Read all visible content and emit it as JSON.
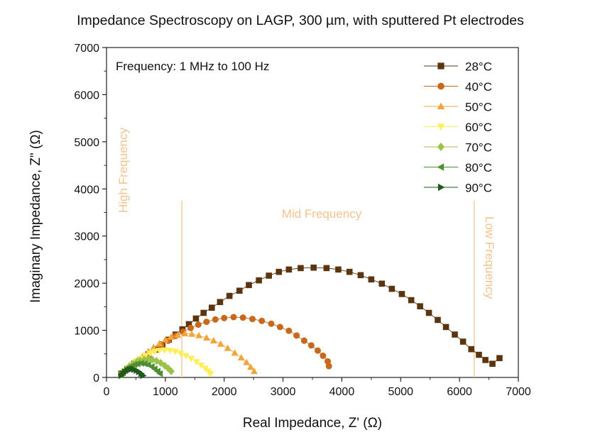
{
  "chart_data": {
    "type": "scatter",
    "title": "Impedance Spectroscopy on LAGP, 300 µm, with sputtered Pt electrodes",
    "xlabel": "Real Impedance, Z' (Ω)",
    "ylabel": "Imaginary Impedance, Z\" (Ω)",
    "xlim": [
      0,
      7000
    ],
    "ylim": [
      0,
      7000
    ],
    "xticks": [
      0,
      1000,
      2000,
      3000,
      4000,
      5000,
      6000,
      7000
    ],
    "yticks": [
      0,
      1000,
      2000,
      3000,
      4000,
      5000,
      6000,
      7000
    ],
    "grid": false,
    "legend_position": "top-right",
    "annotations": {
      "frequency_note": "Frequency: 1 MHz to 100 Hz",
      "high": "High Frequency",
      "mid": "Mid Frequency",
      "low": "Low Frequency"
    },
    "divider_lines_x": [
      1280,
      6250
    ],
    "series": [
      {
        "name": "28°C",
        "marker": "square",
        "color": "#5b3510",
        "x": [
          250,
          355,
          470,
          590,
          710,
          830,
          950,
          1060,
          1175,
          1290,
          1400,
          1520,
          1650,
          1790,
          1930,
          2090,
          2260,
          2420,
          2590,
          2760,
          2930,
          3100,
          3300,
          3520,
          3740,
          3940,
          4130,
          4320,
          4500,
          4680,
          4850,
          5020,
          5180,
          5330,
          5480,
          5630,
          5770,
          5920,
          6060,
          6200,
          6330,
          6440,
          6560,
          6680
        ],
        "y": [
          80,
          180,
          290,
          390,
          490,
          590,
          700,
          800,
          910,
          1020,
          1130,
          1250,
          1370,
          1480,
          1600,
          1730,
          1840,
          1960,
          2060,
          2160,
          2240,
          2290,
          2320,
          2330,
          2320,
          2290,
          2240,
          2170,
          2080,
          1990,
          1880,
          1770,
          1640,
          1510,
          1370,
          1220,
          1070,
          910,
          760,
          600,
          480,
          370,
          290,
          410
        ]
      },
      {
        "name": "40°C",
        "marker": "circle",
        "color": "#c8681c",
        "x": [
          250,
          330,
          420,
          510,
          610,
          710,
          820,
          930,
          1050,
          1170,
          1300,
          1430,
          1560,
          1700,
          1850,
          2000,
          2160,
          2320,
          2480,
          2640,
          2800,
          2950,
          3100,
          3230,
          3360,
          3480,
          3590,
          3680,
          3760,
          3780
        ],
        "y": [
          60,
          140,
          210,
          290,
          390,
          480,
          580,
          680,
          780,
          880,
          970,
          1050,
          1120,
          1180,
          1230,
          1260,
          1280,
          1270,
          1240,
          1200,
          1140,
          1070,
          990,
          890,
          780,
          680,
          570,
          460,
          340,
          240
        ]
      },
      {
        "name": "50°C",
        "marker": "triangle-up",
        "color": "#f2a43a",
        "x": [
          250,
          310,
          380,
          450,
          530,
          620,
          710,
          800,
          900,
          1000,
          1100,
          1210,
          1330,
          1450,
          1570,
          1700,
          1820,
          1940,
          2060,
          2180,
          2290,
          2380,
          2450,
          2510
        ],
        "y": [
          60,
          140,
          210,
          290,
          370,
          460,
          550,
          640,
          720,
          800,
          860,
          900,
          930,
          920,
          890,
          840,
          780,
          710,
          620,
          520,
          420,
          320,
          220,
          130
        ]
      },
      {
        "name": "60°C",
        "marker": "triangle-down",
        "color": "#ffee58",
        "x": [
          250,
          300,
          360,
          430,
          500,
          580,
          660,
          740,
          820,
          900,
          990,
          1080,
          1170,
          1260,
          1350,
          1440,
          1530,
          1610,
          1680,
          1730,
          1770
        ],
        "y": [
          60,
          130,
          200,
          270,
          340,
          400,
          460,
          510,
          550,
          570,
          580,
          570,
          550,
          510,
          460,
          400,
          330,
          260,
          190,
          130,
          80
        ]
      },
      {
        "name": "70°C",
        "marker": "diamond",
        "color": "#9cc24a",
        "x": [
          250,
          290,
          340,
          390,
          450,
          510,
          570,
          640,
          710,
          780,
          850,
          920,
          990,
          1050,
          1100
        ],
        "y": [
          60,
          120,
          180,
          240,
          290,
          330,
          360,
          380,
          390,
          380,
          350,
          310,
          250,
          190,
          130
        ]
      },
      {
        "name": "80°C",
        "marker": "triangle-left",
        "color": "#4f8f34",
        "x": [
          250,
          280,
          320,
          370,
          420,
          470,
          530,
          590,
          650,
          710,
          770,
          820,
          870,
          910
        ],
        "y": [
          50,
          100,
          150,
          200,
          240,
          270,
          290,
          300,
          290,
          270,
          230,
          180,
          130,
          80
        ]
      },
      {
        "name": "90°C",
        "marker": "triangle-right",
        "color": "#1e5a1c",
        "x": [
          250,
          280,
          310,
          350,
          390,
          430,
          470,
          510,
          550,
          590,
          620
        ],
        "y": [
          40,
          80,
          120,
          150,
          170,
          180,
          170,
          150,
          120,
          80,
          40
        ]
      }
    ]
  }
}
